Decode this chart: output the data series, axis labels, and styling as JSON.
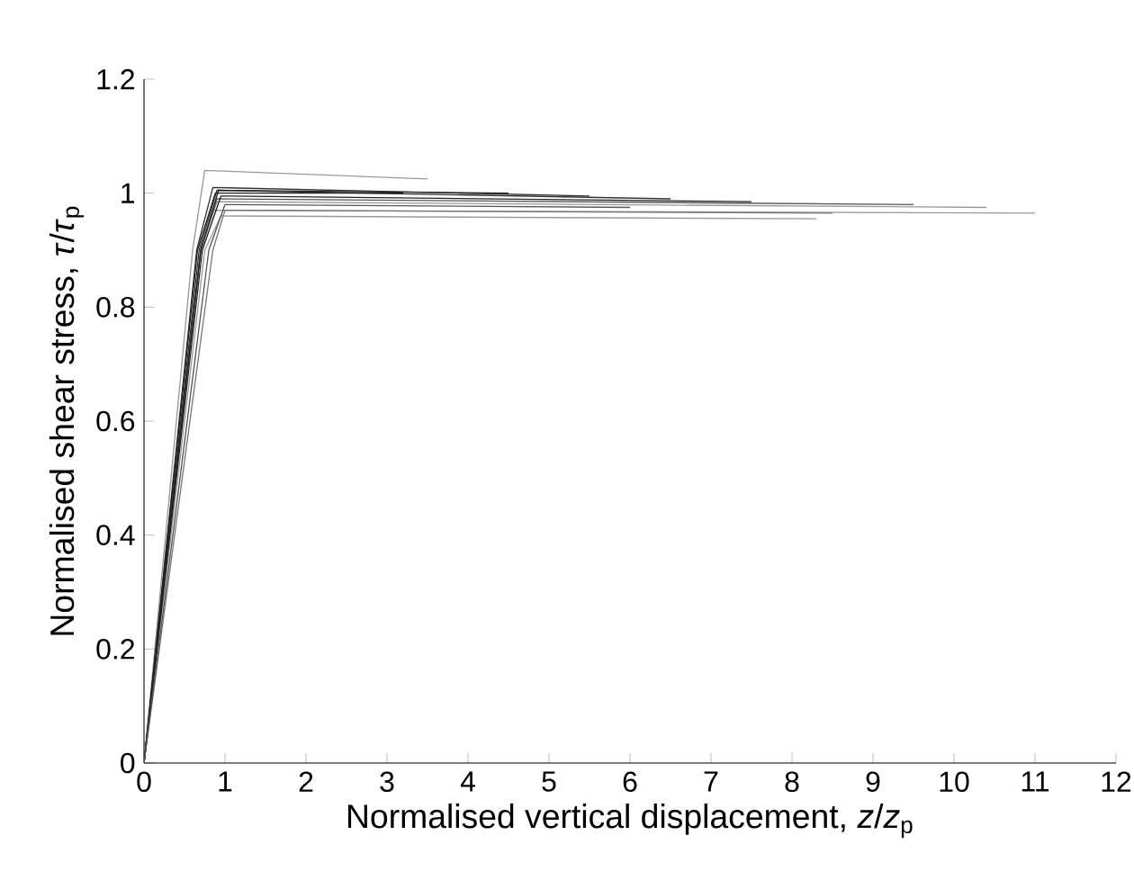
{
  "chart_data": {
    "type": "line",
    "xlabel": "Normalised vertical displacement, *z*/*z*$_{p}$",
    "ylabel": "Normalised shear stress, *τ*/*τ*$_{p}$",
    "xlim": [
      0,
      12
    ],
    "ylim": [
      0,
      1.2
    ],
    "xticks": [
      0,
      1,
      2,
      3,
      4,
      5,
      6,
      7,
      8,
      9,
      10,
      11,
      12
    ],
    "yticks": [
      0,
      0.2,
      0.4,
      0.6,
      0.8,
      1,
      1.2
    ],
    "grid": false,
    "marker": "none",
    "line_style": "solid",
    "series": [
      {
        "color": "#999999",
        "x": [
          0,
          0.7,
          0.85,
          11
        ],
        "values": [
          0,
          0.9,
          0.97,
          0.965
        ]
      },
      {
        "color": "#999999",
        "x": [
          0,
          0.75,
          0.95,
          8.3
        ],
        "values": [
          0,
          0.9,
          0.96,
          0.955
        ]
      },
      {
        "color": "#999999",
        "x": [
          0,
          0.7,
          0.9,
          10.4
        ],
        "values": [
          0,
          0.9,
          0.985,
          0.975
        ]
      },
      {
        "color": "#555555",
        "x": [
          0,
          0.7,
          0.9,
          9.5
        ],
        "values": [
          0,
          0.9,
          0.99,
          0.98
        ]
      },
      {
        "color": "#999999",
        "x": [
          0,
          0.6,
          0.75,
          3.5
        ],
        "values": [
          0,
          0.9,
          1.04,
          1.025
        ]
      },
      {
        "color": "#333333",
        "x": [
          0,
          0.65,
          0.85,
          5.5
        ],
        "values": [
          0,
          0.9,
          1.01,
          0.995
        ]
      },
      {
        "color": "#333333",
        "x": [
          0,
          0.68,
          0.9,
          6.5
        ],
        "values": [
          0,
          0.9,
          1.005,
          0.99
        ]
      },
      {
        "color": "#222222",
        "x": [
          0,
          0.7,
          0.92,
          4.5
        ],
        "values": [
          0,
          0.9,
          1.005,
          1.0
        ]
      },
      {
        "color": "#222222",
        "x": [
          0,
          0.72,
          0.95,
          7.5
        ],
        "values": [
          0,
          0.9,
          0.995,
          0.985
        ]
      },
      {
        "color": "#777777",
        "x": [
          0,
          0.85,
          1.0,
          8.5
        ],
        "values": [
          0,
          0.9,
          0.97,
          0.965
        ]
      },
      {
        "color": "#222222",
        "x": [
          0,
          0.66,
          0.88,
          3.2
        ],
        "values": [
          0,
          0.9,
          1.0,
          1.0
        ]
      },
      {
        "color": "#555555",
        "x": [
          0,
          0.8,
          1.0,
          6.0
        ],
        "values": [
          0,
          0.9,
          0.98,
          0.975
        ]
      }
    ]
  }
}
